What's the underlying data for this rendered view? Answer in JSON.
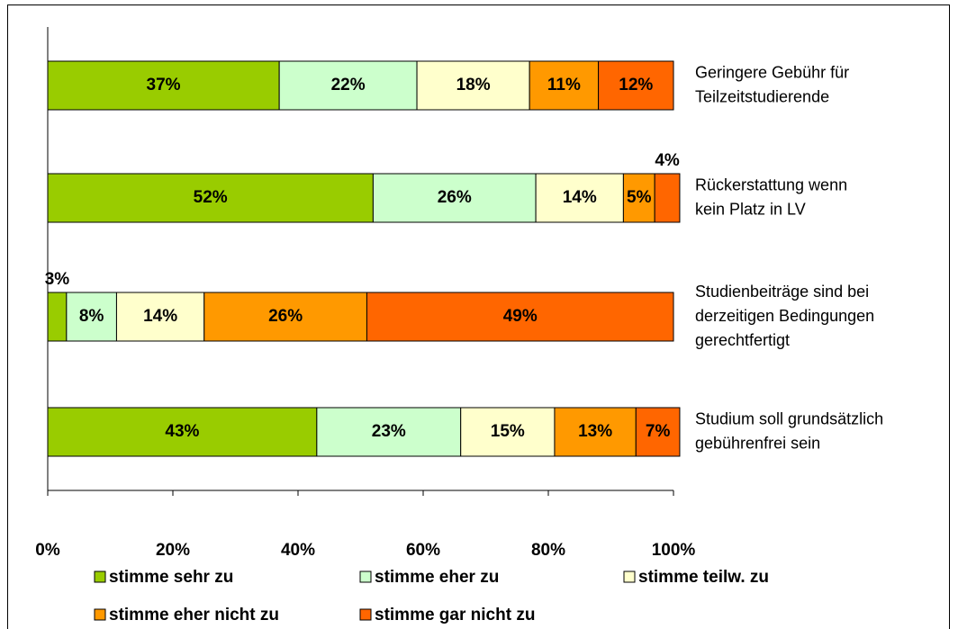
{
  "chart_data": {
    "type": "stacked-bar-horizontal",
    "categories": [
      [
        "Geringere Gebühr für",
        "Teilzeitstudierende"
      ],
      [
        "Rückerstattung wenn",
        "kein Platz in LV"
      ],
      [
        "Studienbeiträge sind bei",
        "derzeitigen Bedingungen",
        "gerechtfertigt"
      ],
      [
        "Studium soll grundsätzlich",
        "gebührenfrei sein"
      ]
    ],
    "series": [
      {
        "name": "stimme sehr zu",
        "color": "#99cc00",
        "values": [
          37,
          52,
          3,
          43
        ],
        "value_labels": [
          "37%",
          "52%",
          "3%",
          "43%"
        ]
      },
      {
        "name": "stimme eher zu",
        "color": "#ccffcc",
        "values": [
          22,
          26,
          8,
          23
        ],
        "value_labels": [
          "22%",
          "26%",
          "8%",
          "23%"
        ]
      },
      {
        "name": "stimme teilw. zu",
        "color": "#ffffcc",
        "values": [
          18,
          14,
          14,
          15
        ],
        "value_labels": [
          "18%",
          "14%",
          "14%",
          "15%"
        ]
      },
      {
        "name": "stimme eher nicht zu",
        "color": "#ff9900",
        "values": [
          11,
          5,
          26,
          13
        ],
        "value_labels": [
          "11%",
          "5%",
          "26%",
          "13%"
        ]
      },
      {
        "name": "stimme gar nicht zu",
        "color": "#ff6600",
        "values": [
          12,
          4,
          49,
          7
        ],
        "value_labels": [
          "12%",
          "4%",
          "49%",
          "7%"
        ]
      }
    ],
    "xlim": [
      0,
      100
    ],
    "xticks": [
      {
        "value": 0,
        "label": "0%"
      },
      {
        "value": 20,
        "label": "20%"
      },
      {
        "value": 40,
        "label": "40%"
      },
      {
        "value": 60,
        "label": "60%"
      },
      {
        "value": 80,
        "label": "80%"
      },
      {
        "value": 100,
        "label": "100%"
      }
    ],
    "legend": "bottom"
  }
}
